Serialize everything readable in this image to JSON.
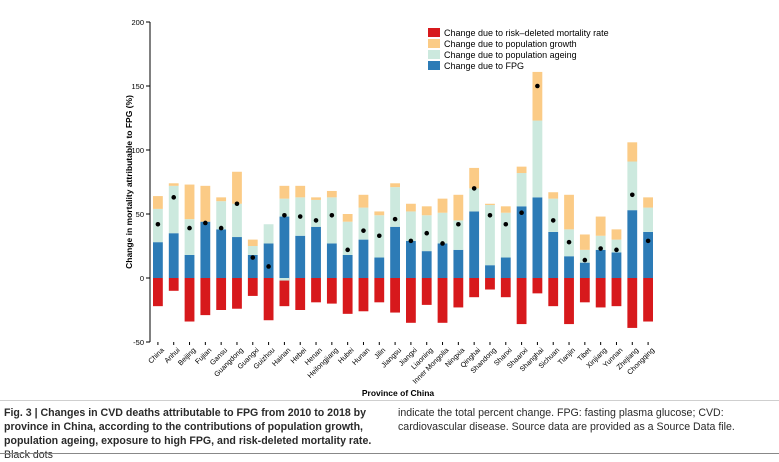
{
  "chart_data": {
    "type": "bar",
    "stacked": true,
    "ylabel": "Change in mortality attributable to FPG (%)",
    "xlabel": "Province of China",
    "ylim": [
      -50,
      200
    ],
    "yticks": [
      -50,
      0,
      50,
      100,
      150,
      200
    ],
    "legend_position": "top-right",
    "categories": [
      "China",
      "Anhui",
      "Beijing",
      "Fujian",
      "Gansu",
      "Guangdong",
      "Guangxi",
      "Guizhou",
      "Hainan",
      "Hebei",
      "Henan",
      "Heilongjiang",
      "Hubei",
      "Hunan",
      "Jilin",
      "Jiangsu",
      "Jiangxi",
      "Liaoning",
      "Inner Mongolia",
      "Ningxia",
      "Qinghai",
      "Shandong",
      "Shanxi",
      "Shaanxi",
      "Shanghai",
      "Sichuan",
      "Tianjin",
      "Tibet",
      "Xinjiang",
      "Yunnan",
      "Zhejiang",
      "Chongqing"
    ],
    "series": [
      {
        "name": "Change due to risk–deleted mortality rate",
        "color": "#d7191c",
        "values": [
          -22,
          -10,
          -34,
          -29,
          -25,
          -24,
          -14,
          -33,
          -22,
          -25,
          -19,
          -20,
          -28,
          -26,
          -19,
          -27,
          -35,
          -21,
          -35,
          -23,
          -15,
          -9,
          -15,
          -36,
          -12,
          -22,
          -36,
          -19,
          -23,
          -22,
          -39,
          -34
        ]
      },
      {
        "name": "Change due to FPG",
        "color": "#2c7bb6",
        "values": [
          28,
          35,
          18,
          44,
          38,
          32,
          18,
          27,
          48,
          33,
          40,
          27,
          18,
          30,
          16,
          40,
          29,
          21,
          27,
          22,
          52,
          10,
          16,
          56,
          63,
          36,
          17,
          12,
          22,
          20,
          53,
          36
        ]
      },
      {
        "name": "Change due to population ageing",
        "color": "#cce9de",
        "values": [
          26,
          37,
          28,
          0,
          22,
          26,
          7,
          15,
          14,
          30,
          21,
          36,
          26,
          25,
          33,
          31,
          23,
          28,
          24,
          23,
          18,
          47,
          35,
          26,
          60,
          26,
          21,
          10,
          11,
          10,
          38,
          19
        ]
      },
      {
        "name": "Change due to population growth",
        "color": "#fbcb86",
        "values": [
          10,
          2,
          27,
          28,
          3,
          25,
          5,
          0,
          10,
          9,
          2,
          5,
          6,
          10,
          3,
          3,
          6,
          7,
          11,
          20,
          16,
          1,
          5,
          5,
          38,
          5,
          27,
          12,
          15,
          8,
          15,
          8
        ]
      }
    ],
    "negative_ageing": {
      "category": "Hainan",
      "value": -2
    },
    "total_change": [
      42,
      63,
      39,
      43,
      39,
      58,
      16,
      9,
      49,
      48,
      45,
      49,
      22,
      37,
      33,
      46,
      29,
      35,
      27,
      42,
      70,
      49,
      42,
      51,
      150,
      45,
      28,
      14,
      23,
      22,
      65,
      29
    ],
    "total_marker": "Black dots"
  },
  "caption": {
    "label": "Fig. 3 | Changes in CVD deaths attributable to FPG from 2010 to 2018 by province in China, according to the contributions of population growth, population ageing, exposure to high FPG, and risk-deleted mortality rate.",
    "text_left": "Black dots",
    "text_right": "indicate the total percent change. FPG: fasting plasma glucose; CVD: cardiovascular disease. Source data are provided as a Source Data file."
  }
}
